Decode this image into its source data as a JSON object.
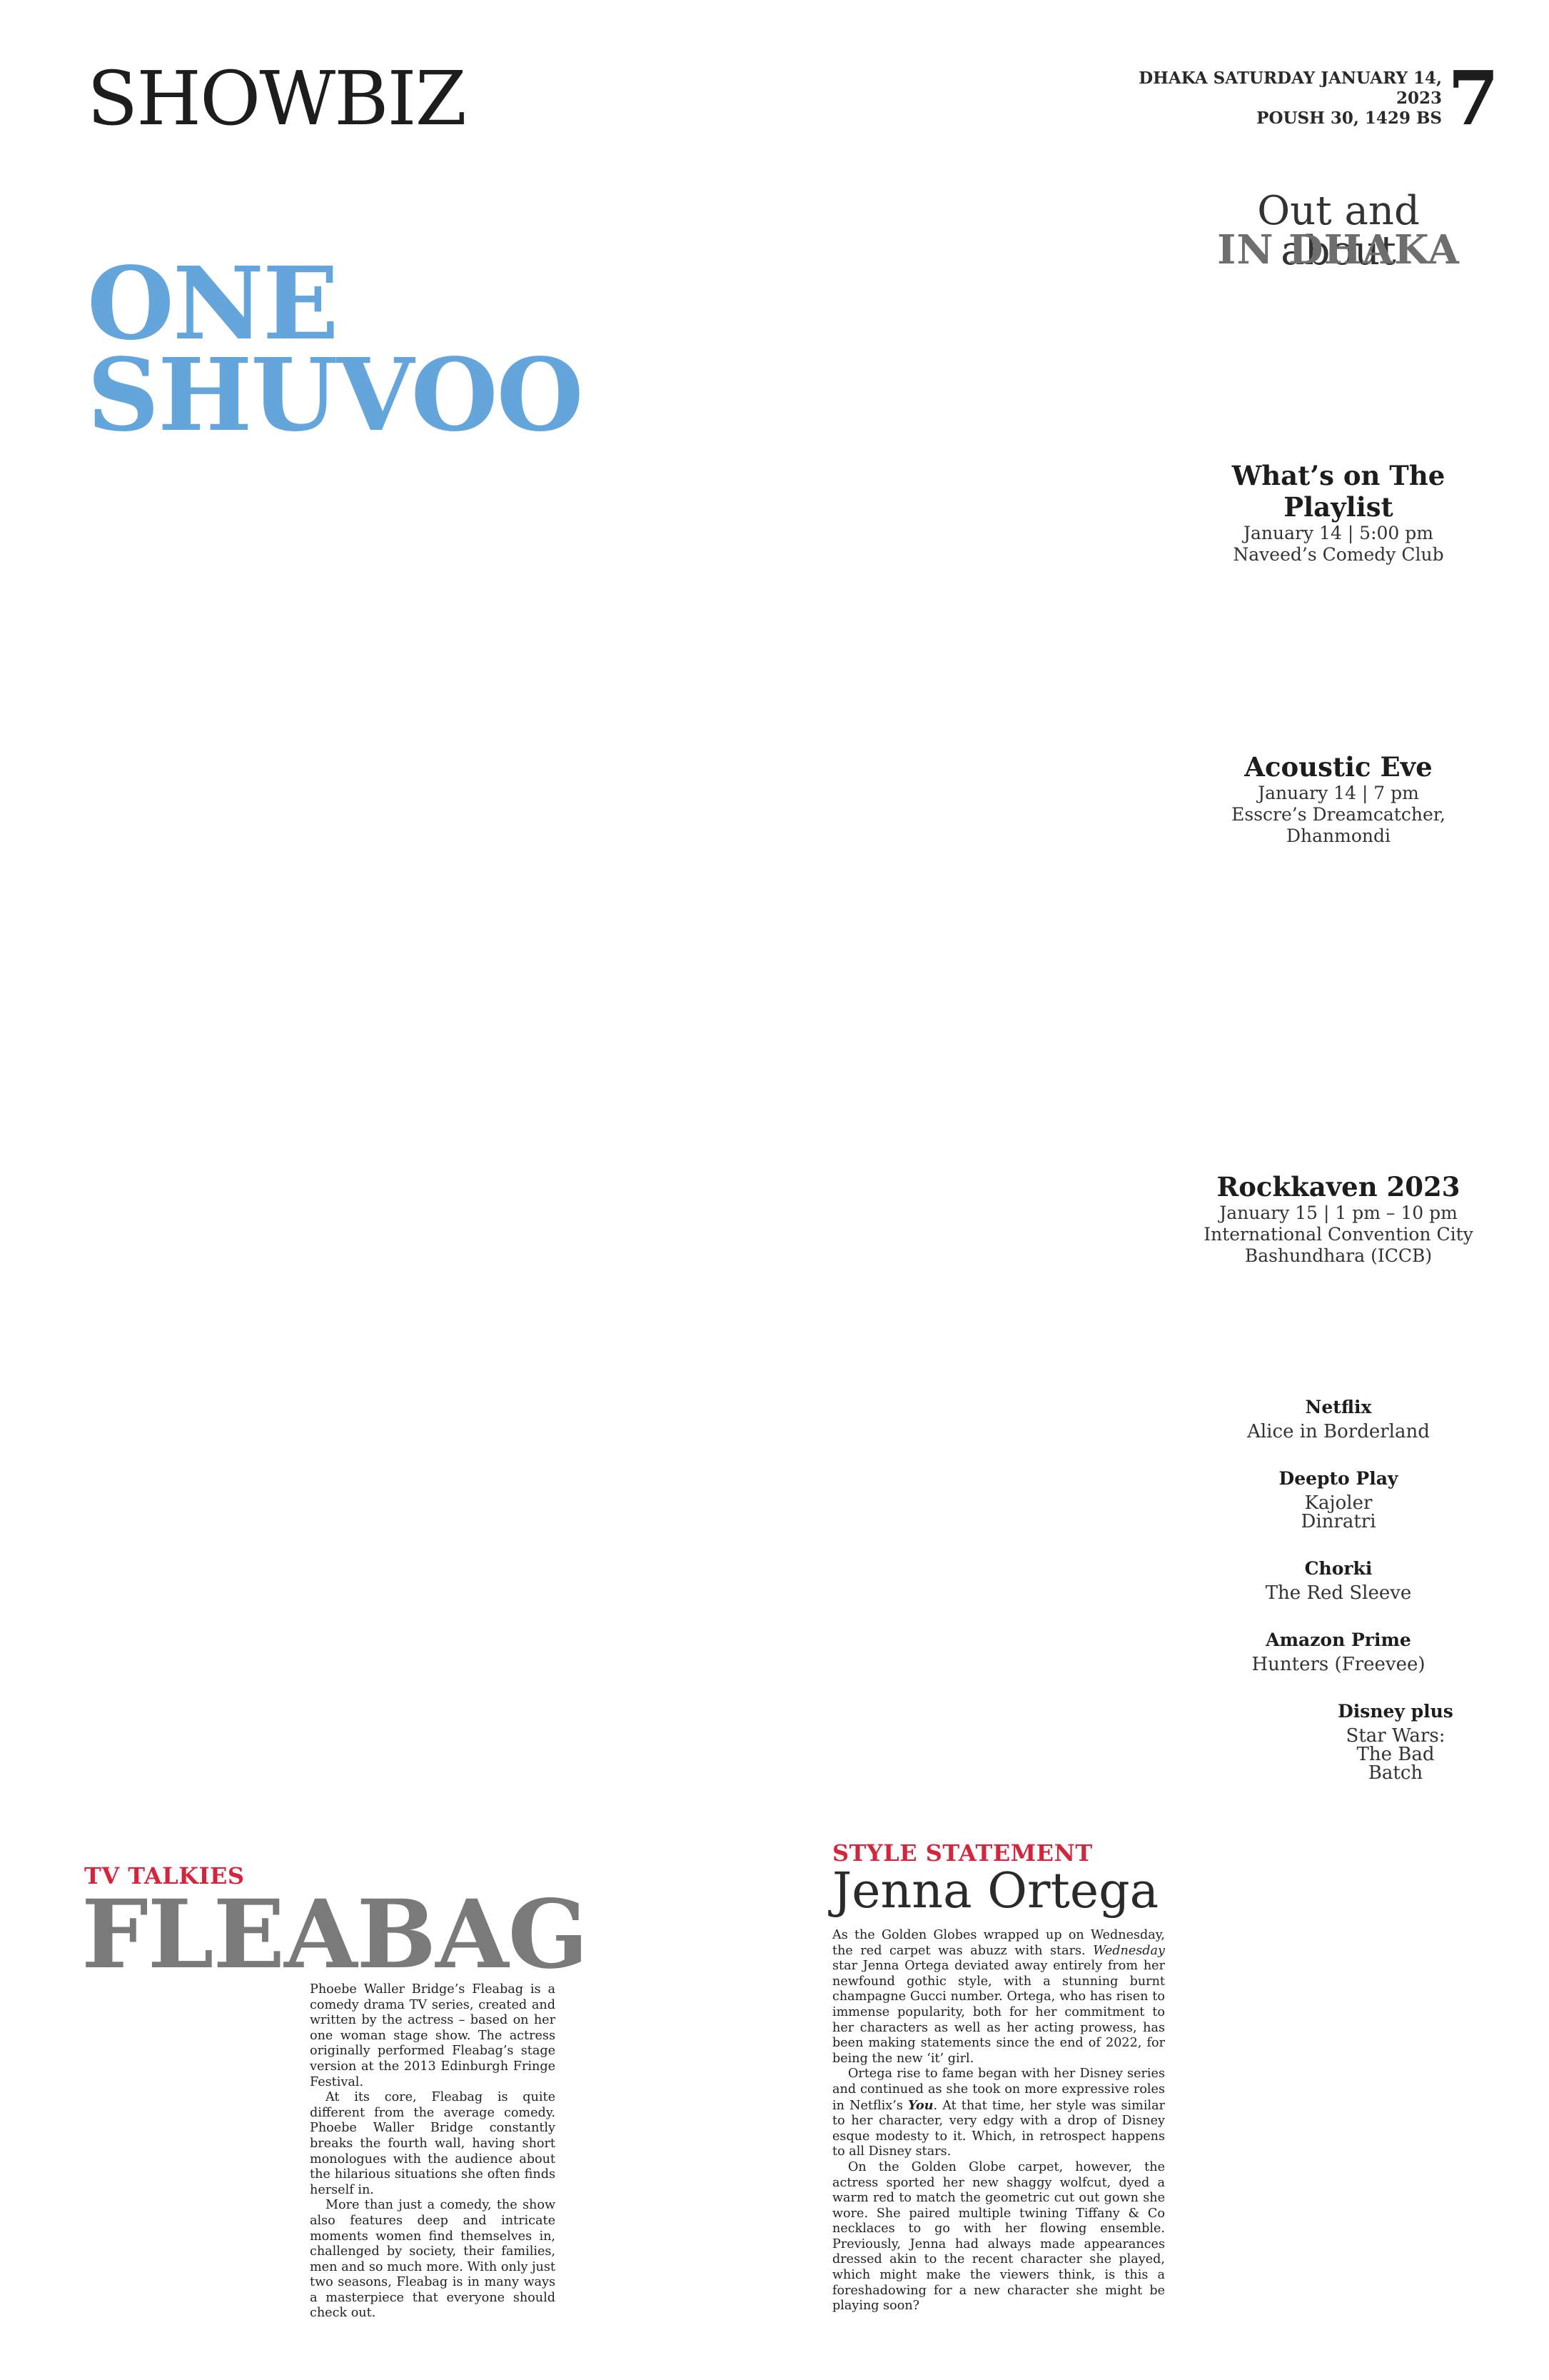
{
  "header": {
    "section": "SHOWBIZ",
    "dateline_1": "DHAKA SATURDAY JANUARY 14, 2023",
    "dateline_2": "POUSH 30, 1429 BS",
    "page_number": "7"
  },
  "headline": {
    "line1": "ONE",
    "line2": "SHUVOO"
  },
  "out_about": {
    "title_1": "Out and about",
    "title_2": "IN DHAKA",
    "events": [
      {
        "title_1": "What’s on The",
        "title_2": "Playlist",
        "date": "January 14 | 5:00 pm",
        "venue_1": "Naveed’s Comedy Club"
      },
      {
        "title_1": "Acoustic Eve",
        "date": "January 14 | 7 pm",
        "venue_1": "Esscre’s Dreamcatcher,",
        "venue_2": "Dhanmondi"
      },
      {
        "title_1": "Rockkaven 2023",
        "date": "January 15 | 1 pm – 10 pm",
        "venue_1": "International Convention City",
        "venue_2": "Bashundhara (ICCB)"
      }
    ]
  },
  "streaming": [
    {
      "platform": "Netflix",
      "titles": [
        "Alice in Borderland"
      ]
    },
    {
      "platform": "Deepto Play",
      "titles": [
        "Kajoler",
        "Dinratri"
      ]
    },
    {
      "platform": "Chorki",
      "titles": [
        "The Red Sleeve"
      ]
    },
    {
      "platform": "Amazon Prime",
      "titles": [
        "Hunters (Freevee)"
      ]
    },
    {
      "platform": "Disney plus",
      "titles": [
        "Star Wars:",
        "The Bad",
        "Batch"
      ]
    }
  ],
  "tv_talkies": {
    "kicker": "TV TALKIES",
    "title": "FLEABAG",
    "paragraphs": [
      "Phoebe Waller Bridge’s Fleabag is a comedy drama TV series, created and written by the actress – based on her one woman stage show. The actress originally performed Fleabag’s stage version at the 2013 Edinburgh Fringe Festival.",
      "At its core, Fleabag is quite different from the average comedy. Phoebe Waller Bridge constantly breaks the fourth wall, having short monologues with the audience about the hilarious situations she often finds herself in.",
      "More than just a comedy, the show also features deep and intricate moments women find themselves in, challenged by society, their families, men and so much more. With only just two seasons, Fleabag is in many ways a masterpiece that everyone should check out."
    ]
  },
  "style_statement": {
    "kicker": "STYLE STATEMENT",
    "title": "Jenna Ortega",
    "p1_a": "As the Golden Globes wrapped up on Wednesday, the red carpet was abuzz with stars. ",
    "p1_b": "Wednesday",
    "p1_c": " star Jenna Ortega deviated away entirely from her newfound gothic style, with a stunning burnt champagne Gucci number. Ortega, who has risen to immense popularity, both for her commitment to her characters as well as her acting prowess, has been making statements since the end of 2022, for being the new ‘it’ girl.",
    "p2_a": "Ortega rise to fame began with her Disney series and continued as she took on more expressive roles in Netflix’s ",
    "p2_b": "You",
    "p2_c": ". At that time, her style was similar to her character, very edgy with a drop of Disney esque modesty to it. Which, in retrospect happens to all Disney stars.",
    "p3": "On the Golden Globe carpet, however, the actress sported her new shaggy wolfcut, dyed a warm red to match the geometric cut out gown she wore. She paired multiple twining Tiffany & Co necklaces to go with her flowing ensemble. Previously, Jenna had always made appearances dressed akin to the recent character she played, which might make the viewers think, is this a foreshadowing for a new character she might be playing soon?"
  }
}
